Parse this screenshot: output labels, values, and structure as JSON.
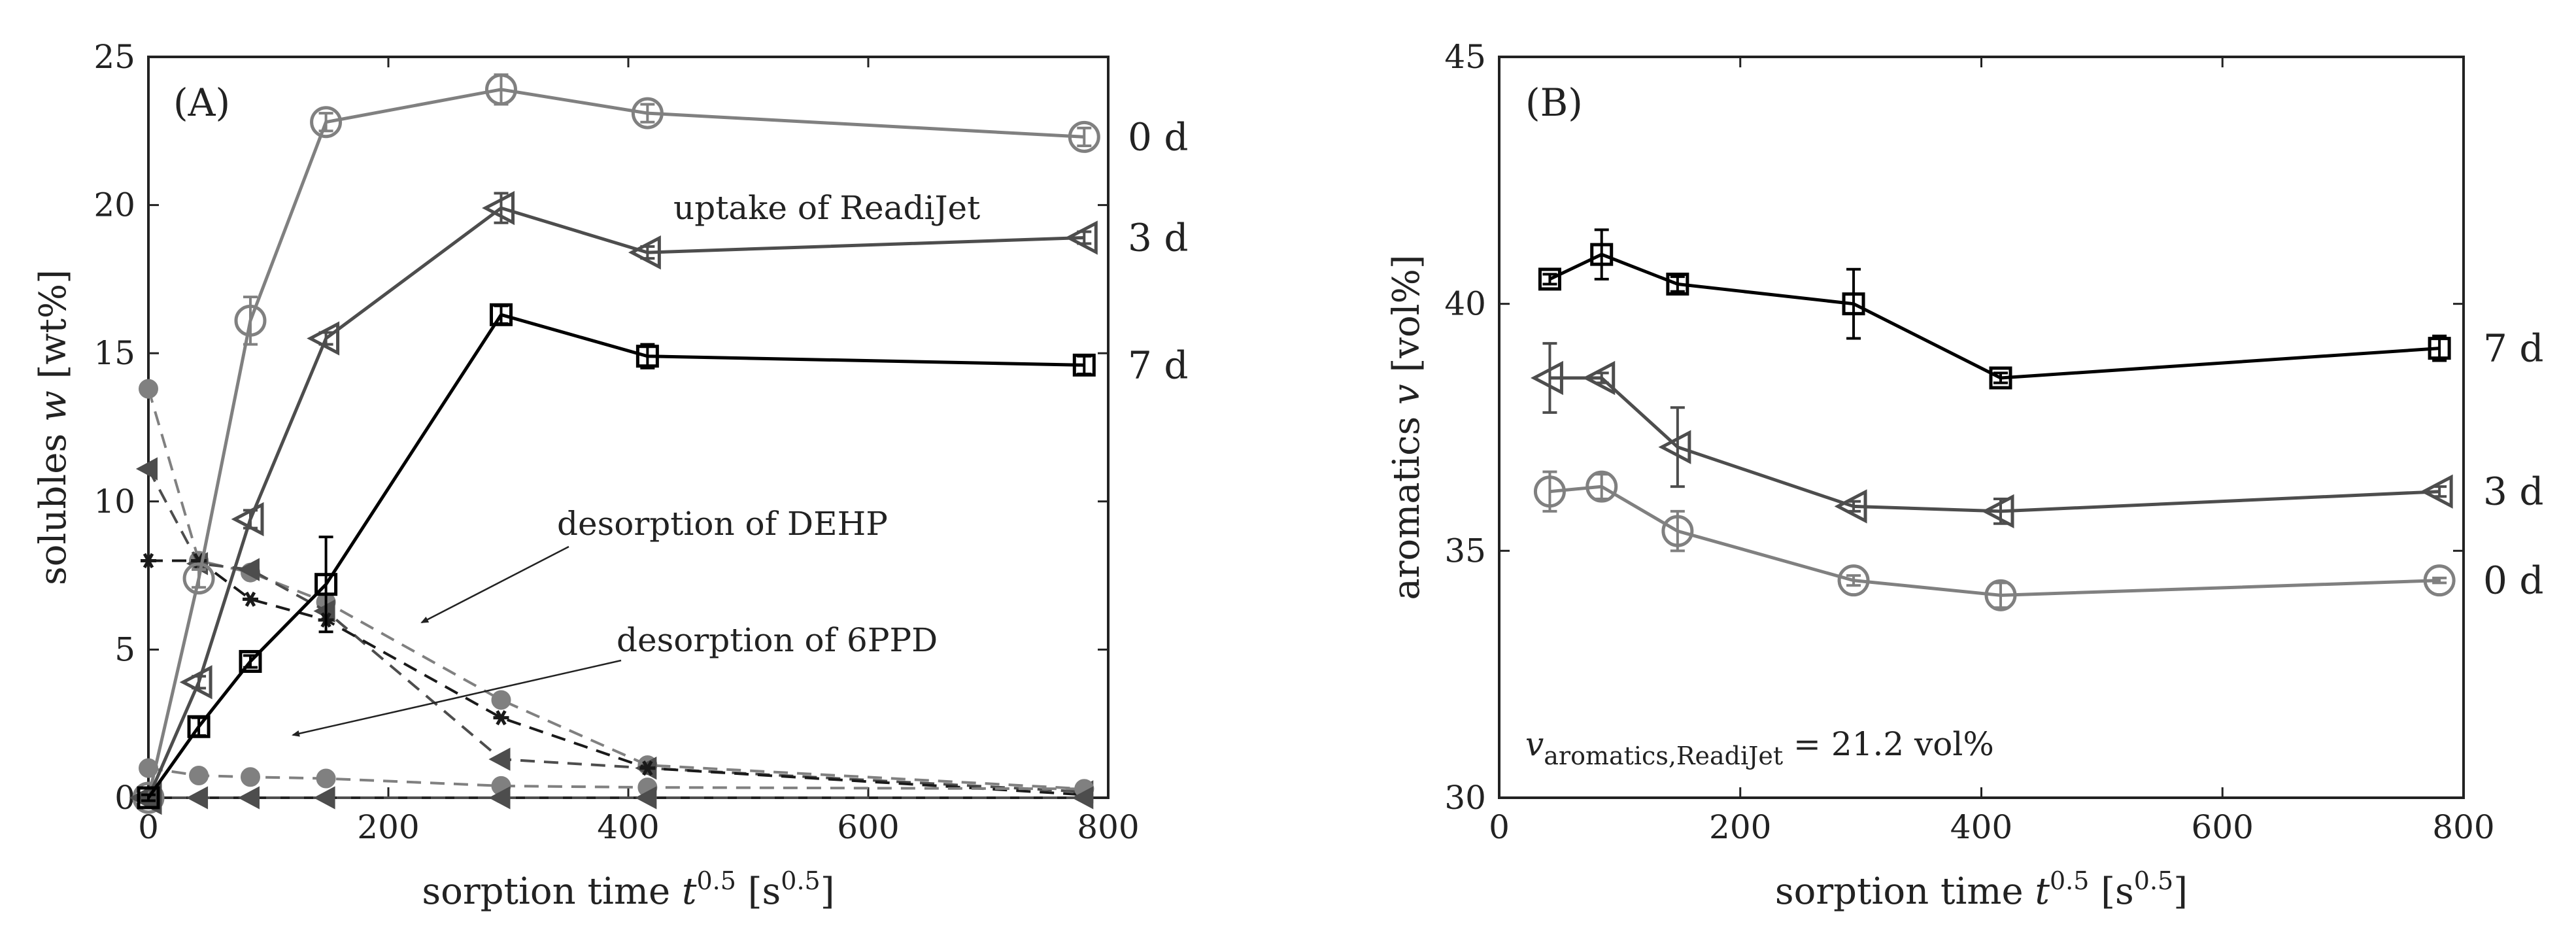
{
  "chart_data": [
    {
      "type": "line",
      "panel_label": "(A)",
      "xlabel": "sorption time t^0.5 [s^0.5]",
      "xlabel_parts": {
        "pre": "sorption time ",
        "var": "t",
        "sup": "0.5",
        "mid": " [s",
        "sup2": "0.5",
        "post": "]"
      },
      "ylabel": "solubles w [wt%]",
      "ylabel_parts": {
        "pre": "solubles ",
        "var": "w",
        "post": " [wt%]"
      },
      "xlim": [
        0,
        800
      ],
      "ylim": [
        0,
        25
      ],
      "xticks": [
        0,
        200,
        400,
        600,
        800
      ],
      "yticks": [
        0,
        5,
        10,
        15,
        20,
        25
      ],
      "grid": false,
      "colors": {
        "0 d": "#808080",
        "3 d": "#4d4d4d",
        "7 d": "#000000"
      },
      "uptake": [
        {
          "name": "0 d",
          "label": "0 d",
          "marker": "circle",
          "color": "#808080",
          "points": [
            {
              "x": 0,
              "y": 0,
              "err": 0.1
            },
            {
              "x": 42,
              "y": 7.4,
              "err": 0.3
            },
            {
              "x": 85,
              "y": 16.1,
              "err": 0.8
            },
            {
              "x": 148,
              "y": 22.8,
              "err": 0.3
            },
            {
              "x": 294,
              "y": 23.9,
              "err": 0.5
            },
            {
              "x": 416,
              "y": 23.1,
              "err": 0.3
            },
            {
              "x": 780,
              "y": 22.3,
              "err": 0.3
            }
          ]
        },
        {
          "name": "3 d",
          "label": "3 d",
          "marker": "triangle-left",
          "color": "#4d4d4d",
          "points": [
            {
              "x": 0,
              "y": 0,
              "err": 0.1
            },
            {
              "x": 42,
              "y": 3.9,
              "err": 0.2
            },
            {
              "x": 85,
              "y": 9.4,
              "err": 0.3
            },
            {
              "x": 148,
              "y": 15.5,
              "err": 0.2
            },
            {
              "x": 294,
              "y": 19.9,
              "err": 0.5
            },
            {
              "x": 416,
              "y": 18.4,
              "err": 0.2
            },
            {
              "x": 780,
              "y": 18.9,
              "err": 0.2
            }
          ]
        },
        {
          "name": "7 d",
          "label": "7 d",
          "marker": "square",
          "color": "#000000",
          "points": [
            {
              "x": 0,
              "y": 0,
              "err": 0.1
            },
            {
              "x": 42,
              "y": 2.4,
              "err": 0.3
            },
            {
              "x": 85,
              "y": 4.6,
              "err": 0.2
            },
            {
              "x": 148,
              "y": 7.2,
              "err": 1.6
            },
            {
              "x": 294,
              "y": 16.3,
              "err": 0.3
            },
            {
              "x": 416,
              "y": 14.9,
              "err": 0.4
            },
            {
              "x": 780,
              "y": 14.6,
              "err": 0.3
            }
          ]
        }
      ],
      "desorption": [
        {
          "name": "DEHP 0 d",
          "marker": "dot",
          "color": "#808080",
          "points": [
            {
              "x": 0,
              "y": 13.8
            },
            {
              "x": 42,
              "y": 8.0
            },
            {
              "x": 85,
              "y": 7.6
            },
            {
              "x": 148,
              "y": 6.6
            },
            {
              "x": 294,
              "y": 3.3
            },
            {
              "x": 416,
              "y": 1.1
            },
            {
              "x": 780,
              "y": 0.3
            }
          ]
        },
        {
          "name": "DEHP 3 d",
          "marker": "filled-triangle-left",
          "color": "#4d4d4d",
          "points": [
            {
              "x": 0,
              "y": 11.1
            },
            {
              "x": 42,
              "y": 7.9
            },
            {
              "x": 85,
              "y": 7.7
            },
            {
              "x": 148,
              "y": 6.3
            },
            {
              "x": 294,
              "y": 1.3
            },
            {
              "x": 416,
              "y": 1.0
            },
            {
              "x": 780,
              "y": 0.2
            }
          ]
        },
        {
          "name": "DEHP 7 d",
          "marker": "star",
          "color": "#1a1a1a",
          "points": [
            {
              "x": 0,
              "y": 8.0
            },
            {
              "x": 42,
              "y": 8.0
            },
            {
              "x": 85,
              "y": 6.7
            },
            {
              "x": 148,
              "y": 6.0
            },
            {
              "x": 294,
              "y": 2.7
            },
            {
              "x": 416,
              "y": 1.0
            },
            {
              "x": 780,
              "y": 0.1
            }
          ]
        },
        {
          "name": "6PPD 0 d",
          "marker": "dot",
          "color": "#808080",
          "points": [
            {
              "x": 0,
              "y": 1.0
            },
            {
              "x": 42,
              "y": 0.75
            },
            {
              "x": 85,
              "y": 0.7
            },
            {
              "x": 148,
              "y": 0.65
            },
            {
              "x": 294,
              "y": 0.4
            },
            {
              "x": 416,
              "y": 0.35
            },
            {
              "x": 780,
              "y": 0.3
            }
          ]
        },
        {
          "name": "6PPD 3 d",
          "marker": "filled-triangle-left",
          "color": "#4d4d4d",
          "points": [
            {
              "x": 0,
              "y": 0
            },
            {
              "x": 42,
              "y": 0
            },
            {
              "x": 85,
              "y": 0
            },
            {
              "x": 148,
              "y": 0
            },
            {
              "x": 294,
              "y": 0
            },
            {
              "x": 416,
              "y": 0
            },
            {
              "x": 780,
              "y": 0
            }
          ]
        }
      ],
      "annotations": {
        "uptake": "uptake of ReadiJet",
        "dehp": "desorption of DEHP",
        "ppd": "desorption of 6PPD"
      },
      "end_labels": [
        "0 d",
        "3 d",
        "7 d"
      ]
    },
    {
      "type": "line",
      "panel_label": "(B)",
      "xlabel": "sorption time t^0.5 [s^0.5]",
      "xlabel_parts": {
        "pre": "sorption time ",
        "var": "t",
        "sup": "0.5",
        "mid": " [s",
        "sup2": "0.5",
        "post": "]"
      },
      "ylabel": "aromatics v [vol%]",
      "ylabel_parts": {
        "pre": "aromatics ",
        "var": "v",
        "post": " [vol%]"
      },
      "xlim": [
        0,
        800
      ],
      "ylim": [
        30,
        45
      ],
      "xticks": [
        0,
        200,
        400,
        600,
        800
      ],
      "yticks": [
        30,
        35,
        40,
        45
      ],
      "grid": false,
      "series": [
        {
          "name": "7 d",
          "label": "7 d",
          "marker": "square",
          "color": "#000000",
          "points": [
            {
              "x": 42,
              "y": 40.5,
              "err": 0.1
            },
            {
              "x": 85,
              "y": 41.0,
              "err": 0.5
            },
            {
              "x": 148,
              "y": 40.4,
              "err": 0.15
            },
            {
              "x": 294,
              "y": 40.0,
              "err": 0.7
            },
            {
              "x": 416,
              "y": 38.5,
              "err": 0.1
            },
            {
              "x": 780,
              "y": 39.1,
              "err": 0.25
            }
          ]
        },
        {
          "name": "3 d",
          "label": "3 d",
          "marker": "triangle-left",
          "color": "#4d4d4d",
          "points": [
            {
              "x": 42,
              "y": 38.5,
              "err": 0.7
            },
            {
              "x": 85,
              "y": 38.5,
              "err": 0.1
            },
            {
              "x": 148,
              "y": 37.1,
              "err": 0.8
            },
            {
              "x": 294,
              "y": 35.9,
              "err": 0.1
            },
            {
              "x": 416,
              "y": 35.8,
              "err": 0.25
            },
            {
              "x": 780,
              "y": 36.2,
              "err": 0.1
            }
          ]
        },
        {
          "name": "0 d",
          "label": "0 d",
          "marker": "circle",
          "color": "#808080",
          "points": [
            {
              "x": 42,
              "y": 36.2,
              "err": 0.4
            },
            {
              "x": 85,
              "y": 36.3,
              "err": 0.25
            },
            {
              "x": 148,
              "y": 35.4,
              "err": 0.4
            },
            {
              "x": 294,
              "y": 34.4,
              "err": 0.1
            },
            {
              "x": 416,
              "y": 34.1,
              "err": 0.25
            },
            {
              "x": 780,
              "y": 34.4,
              "err": 0.05
            }
          ]
        }
      ],
      "annotation": {
        "var": "v",
        "sub": "aromatics,ReadiJet",
        "rest": " = 21.2 vol%"
      },
      "end_labels": [
        "7 d",
        "3 d",
        "0 d"
      ]
    }
  ]
}
